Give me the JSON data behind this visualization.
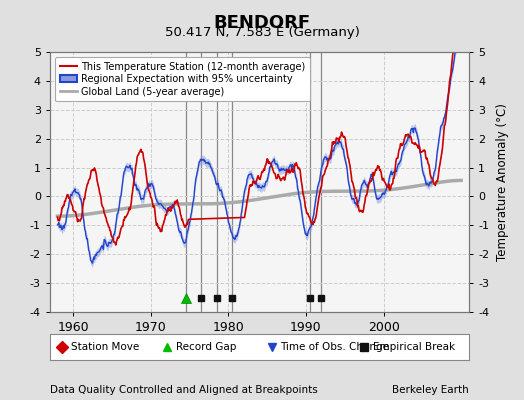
{
  "title": "BENDORF",
  "subtitle": "50.417 N, 7.583 E (Germany)",
  "ylabel": "Temperature Anomaly (°C)",
  "xlabel_note": "Data Quality Controlled and Aligned at Breakpoints",
  "credit": "Berkeley Earth",
  "ylim": [
    -4,
    5
  ],
  "xlim": [
    1957,
    2011
  ],
  "xticks": [
    1960,
    1970,
    1980,
    1990,
    2000
  ],
  "yticks": [
    -4,
    -3,
    -2,
    -1,
    0,
    1,
    2,
    3,
    4,
    5
  ],
  "background_color": "#e0e0e0",
  "plot_bg_color": "#f5f5f5",
  "station_color": "#cc0000",
  "regional_color": "#2244cc",
  "regional_fill_color": "#8899dd",
  "global_color": "#aaaaaa",
  "event_markers": {
    "record_gap": [
      1974.5
    ],
    "empirical_break": [
      1976.5,
      1978.5,
      1980.5,
      1990.5,
      1992.0
    ],
    "time_obs_change": [],
    "station_move": []
  },
  "vertical_line_color": "#888888",
  "station_gap_start": 1975.0,
  "station_gap_end": 1982.0
}
